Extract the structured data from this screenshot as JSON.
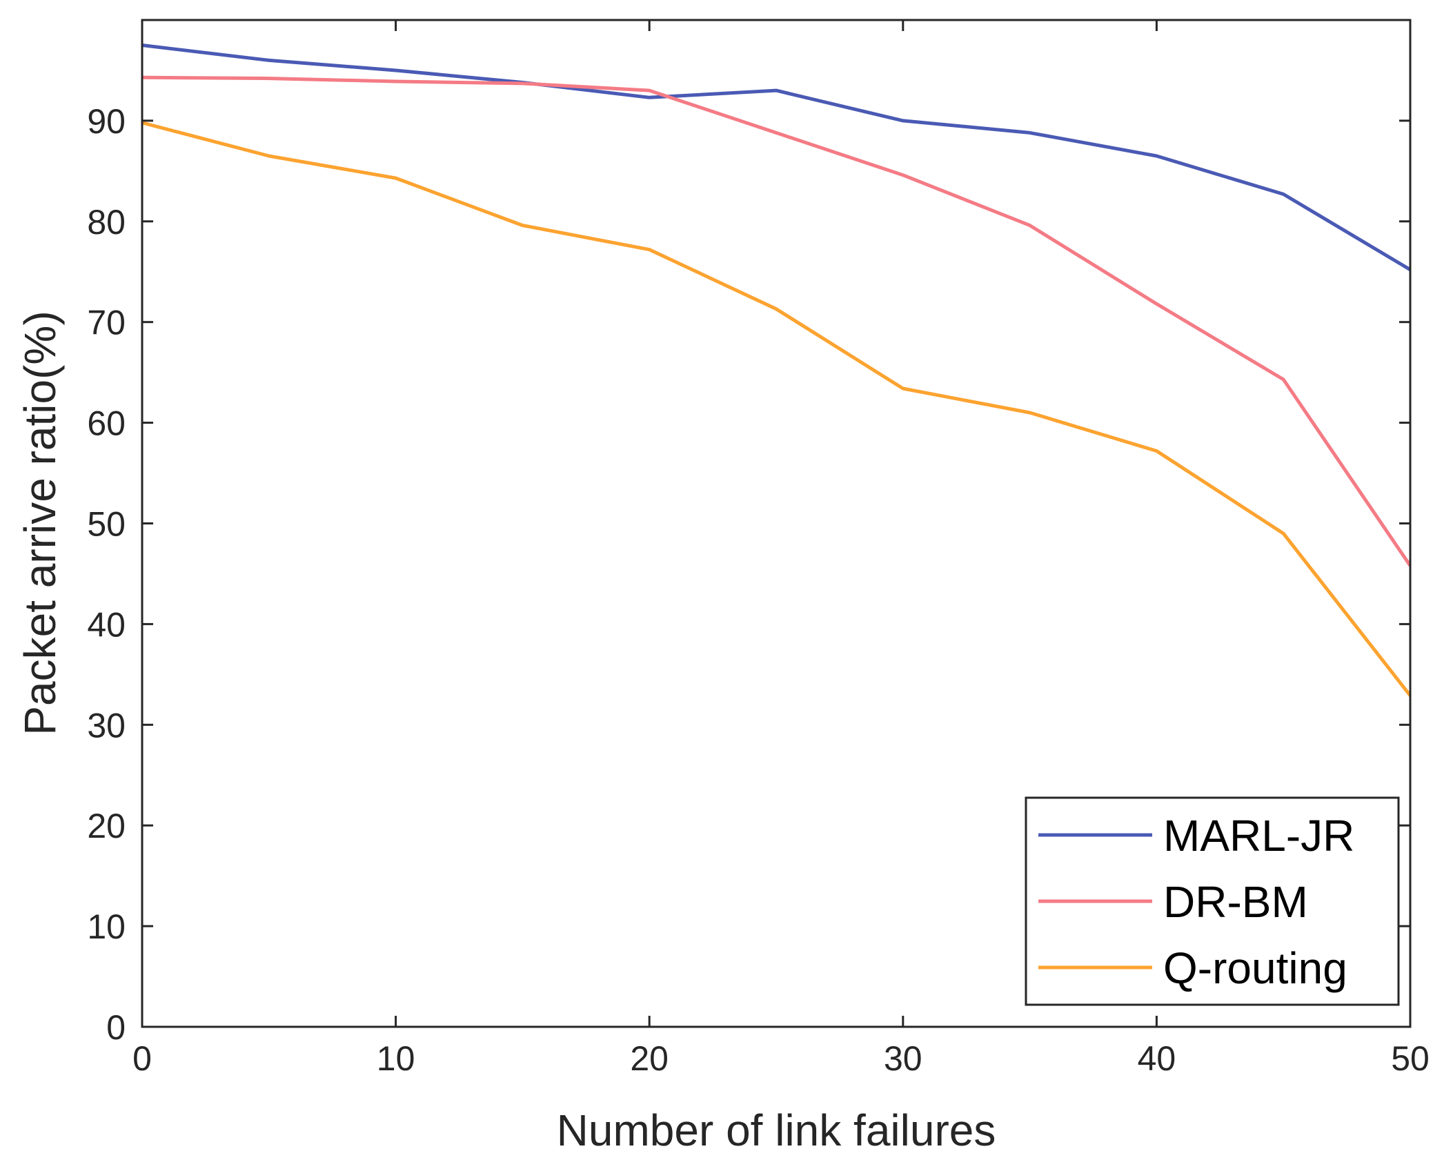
{
  "chart_data": {
    "type": "line",
    "title": "",
    "xlabel": "Number of link failures",
    "ylabel": "Packet arrive ratio(%)",
    "xlim": [
      0,
      50
    ],
    "ylim": [
      0,
      100
    ],
    "xticks": [
      0,
      10,
      20,
      30,
      40,
      50
    ],
    "yticks": [
      0,
      10,
      20,
      30,
      40,
      50,
      60,
      70,
      80,
      90
    ],
    "grid": false,
    "legend_position": "bottom-right",
    "x": [
      0,
      5,
      10,
      15,
      20,
      25,
      30,
      35,
      40,
      45,
      50
    ],
    "series": [
      {
        "name": "MARL-JR",
        "color": "#4a5ab4",
        "values": [
          97.5,
          96.0,
          95.0,
          93.8,
          92.3,
          93.0,
          90.0,
          88.8,
          86.5,
          82.7,
          75.2
        ]
      },
      {
        "name": "DR-BM",
        "color": "#f47b85",
        "values": [
          94.3,
          94.2,
          93.9,
          93.7,
          93.0,
          88.8,
          84.6,
          79.6,
          71.8,
          64.3,
          45.8
        ]
      },
      {
        "name": "Q-routing",
        "color": "#fca330",
        "values": [
          89.8,
          86.5,
          84.3,
          79.6,
          77.2,
          71.3,
          63.4,
          61.0,
          57.2,
          49.0,
          32.9
        ]
      }
    ]
  }
}
